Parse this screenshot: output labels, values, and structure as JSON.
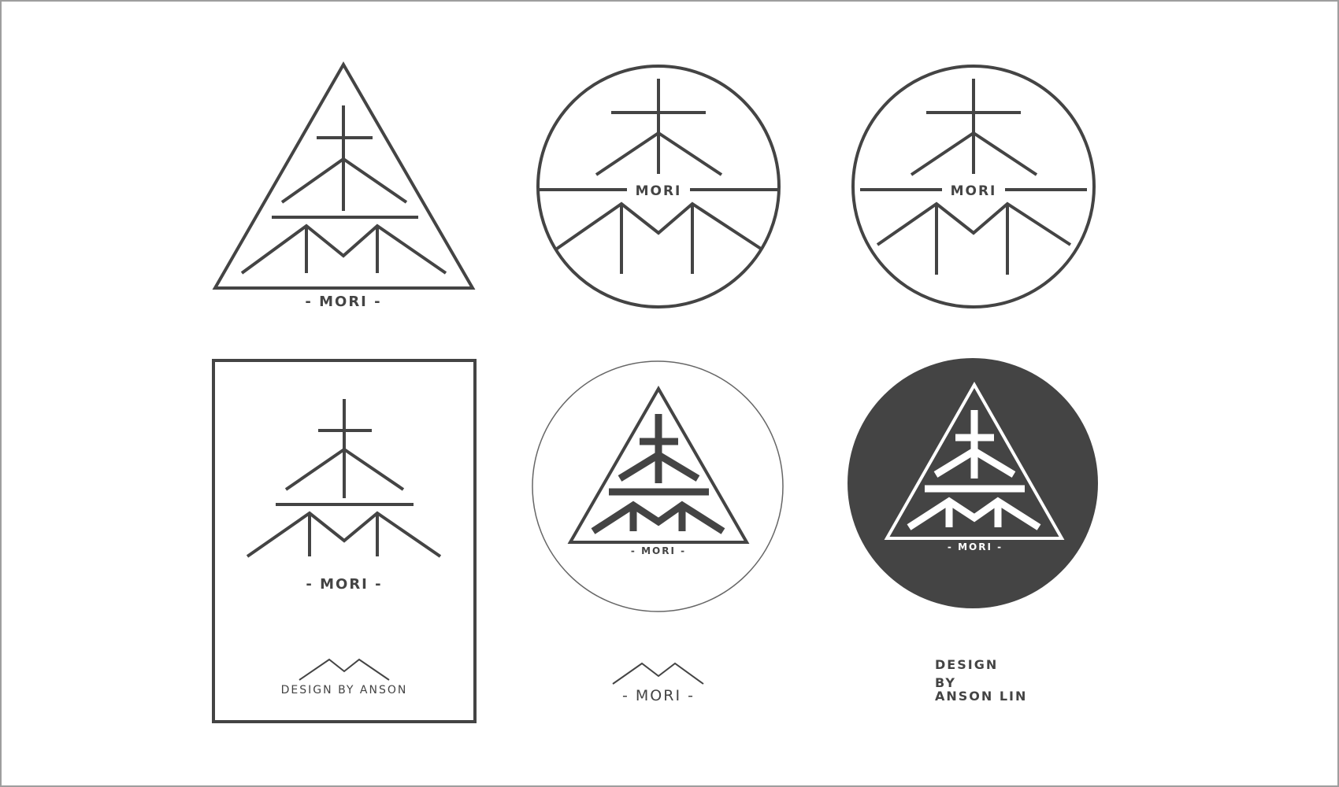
{
  "colors": {
    "ink": "#444444",
    "frame": "#9e9e9e",
    "background": "#ffffff",
    "badge_fill": "#444444",
    "badge_ink": "#ffffff"
  },
  "logos": {
    "triangle": {
      "label": "- MORI -"
    },
    "circle_full": {
      "label": "MORI"
    },
    "circle_inset": {
      "label": "MORI"
    },
    "card": {
      "label": "- MORI -",
      "footer": "DESIGN BY ANSON"
    },
    "thin_circle_badge": {
      "label": "- MORI -",
      "footer": "- MORI -"
    },
    "dark_circle_badge": {
      "label": "- MORI -"
    }
  },
  "credit": {
    "line1": "DESIGN",
    "line2": "BY",
    "line3": "ANSON LIN"
  }
}
